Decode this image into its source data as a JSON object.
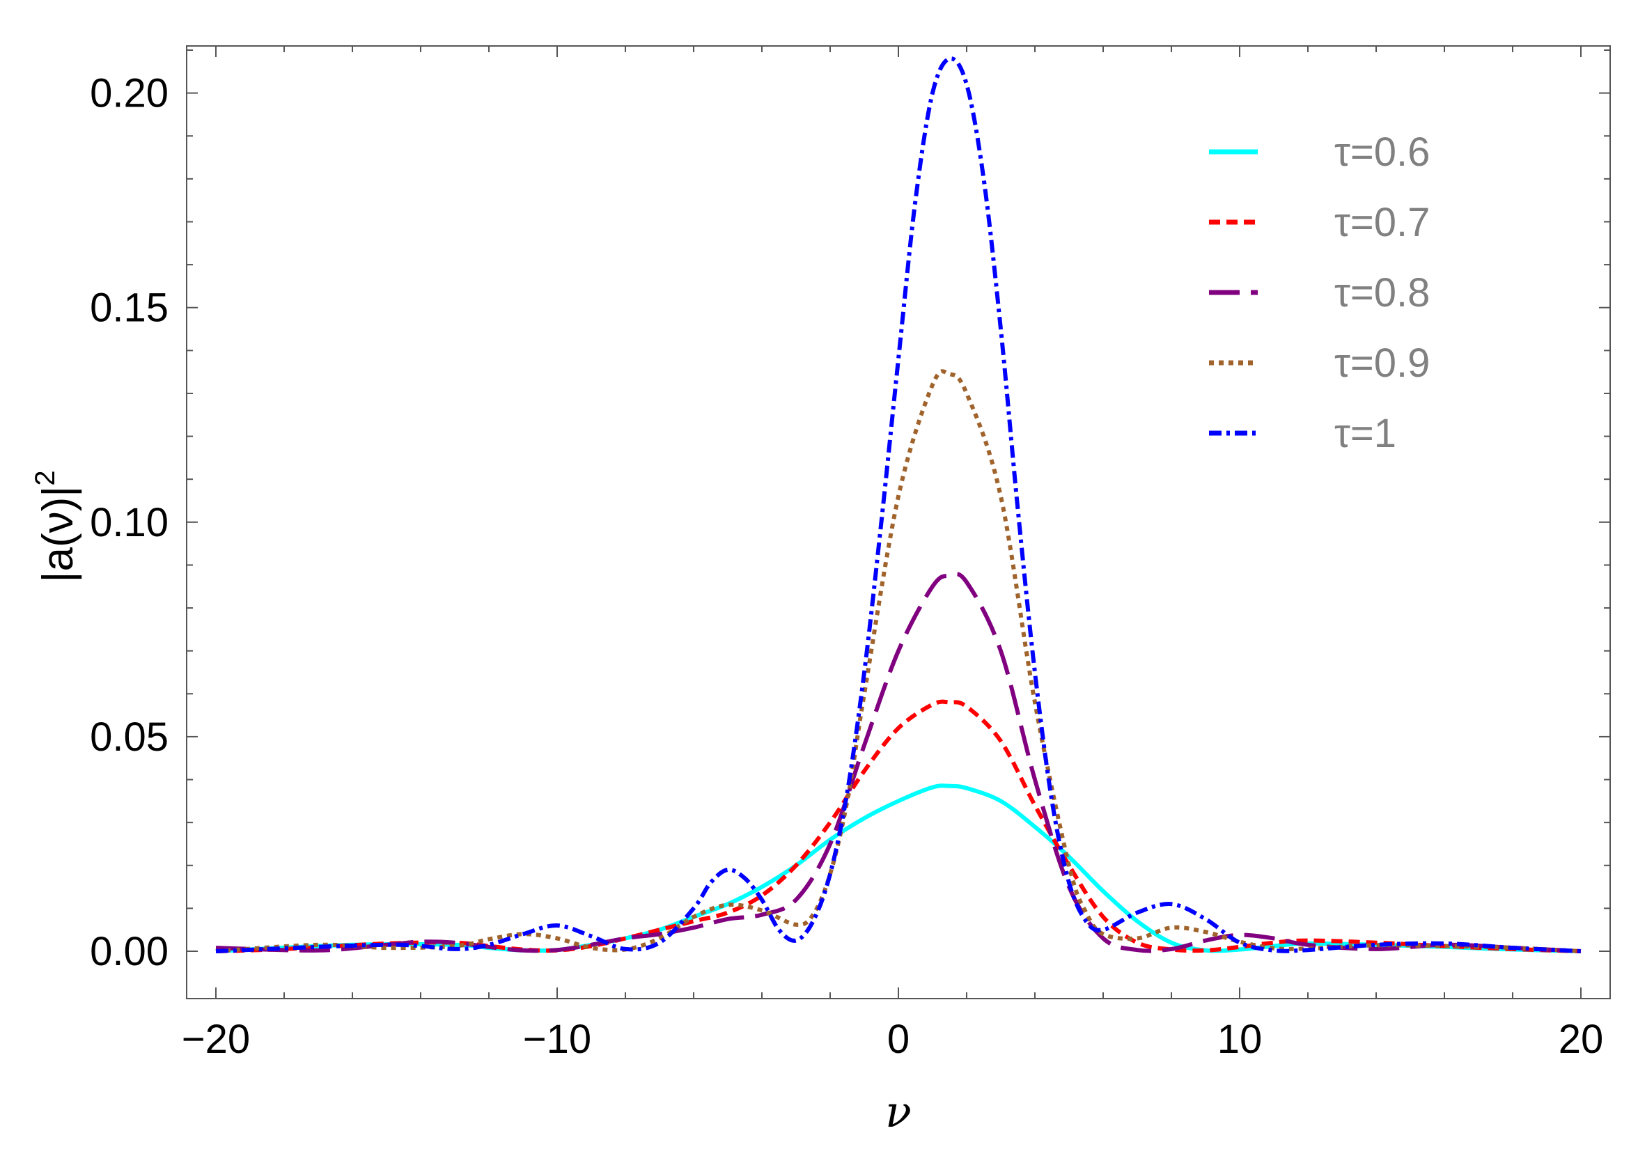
{
  "chart_data": {
    "type": "line",
    "title": "",
    "xlabel": "ν",
    "ylabel": "|a(ν)|²",
    "ylabel_parts": {
      "base": "|a(ν)|",
      "sup": "2"
    },
    "xlim": [
      -20,
      20
    ],
    "ylim": [
      0.0,
      0.21
    ],
    "xticks": [
      -20,
      -10,
      0,
      10,
      20
    ],
    "xtick_labels": [
      "−20",
      "−10",
      "0",
      "10",
      "20"
    ],
    "yticks": [
      0.0,
      0.05,
      0.1,
      0.15,
      0.2
    ],
    "ytick_labels": [
      "0.00",
      "0.05",
      "0.10",
      "0.15",
      "0.20"
    ],
    "grid": false,
    "legend_position": "top-right",
    "series": [
      {
        "name": "τ=0.6",
        "color": "#00ffff",
        "dash": "solid",
        "x": [
          -20,
          -16,
          -13,
          -12,
          -11,
          -10,
          -9,
          -8,
          -7,
          -6,
          -5,
          -4,
          -3,
          -2,
          -1,
          0,
          1,
          1.5,
          2,
          3,
          4,
          5,
          6,
          7,
          8,
          9,
          10,
          11,
          12,
          14,
          16,
          18,
          20
        ],
        "y": [
          0.0,
          0.0015,
          0.0015,
          0.0008,
          0.0002,
          0.0003,
          0.0015,
          0.003,
          0.005,
          0.008,
          0.011,
          0.015,
          0.02,
          0.026,
          0.031,
          0.035,
          0.0382,
          0.0385,
          0.038,
          0.035,
          0.029,
          0.022,
          0.014,
          0.007,
          0.002,
          0.0002,
          0.0004,
          0.0012,
          0.0018,
          0.0015,
          0.001,
          0.0004,
          0.0
        ]
      },
      {
        "name": "τ=0.7",
        "color": "#ff0000",
        "dash": "short",
        "x": [
          -20,
          -18,
          -15,
          -13,
          -12,
          -11,
          -10,
          -9,
          -8,
          -7,
          -6,
          -5,
          -4,
          -3,
          -2,
          -1,
          0,
          1,
          1.5,
          2,
          3,
          4,
          5,
          6,
          7,
          8,
          9,
          10,
          11,
          12,
          14,
          16,
          18,
          20
        ],
        "y": [
          0.0,
          0.0005,
          0.0018,
          0.002,
          0.0012,
          0.0004,
          0.0002,
          0.0012,
          0.003,
          0.005,
          0.007,
          0.009,
          0.013,
          0.02,
          0.03,
          0.042,
          0.052,
          0.0575,
          0.058,
          0.057,
          0.049,
          0.034,
          0.02,
          0.008,
          0.002,
          0.0004,
          0.0002,
          0.001,
          0.002,
          0.0025,
          0.002,
          0.0012,
          0.0005,
          0.0
        ]
      },
      {
        "name": "τ=0.8",
        "color": "#800080",
        "dash": "long",
        "x": [
          -20,
          -17,
          -15,
          -14,
          -13,
          -12,
          -11,
          -10,
          -9,
          -8,
          -7,
          -6,
          -5,
          -4,
          -3,
          -2,
          -1,
          0,
          1,
          1.5,
          2,
          3,
          4,
          5,
          6,
          7,
          8,
          9,
          10,
          11,
          12,
          14,
          16,
          18,
          20
        ],
        "y": [
          0.0008,
          0.0002,
          0.0015,
          0.0022,
          0.002,
          0.001,
          0.0002,
          0.0003,
          0.0015,
          0.003,
          0.004,
          0.0055,
          0.0075,
          0.0085,
          0.012,
          0.025,
          0.048,
          0.07,
          0.085,
          0.0875,
          0.086,
          0.07,
          0.04,
          0.015,
          0.003,
          0.0003,
          0.0005,
          0.0025,
          0.0038,
          0.003,
          0.0015,
          0.0005,
          0.0015,
          0.0008,
          0.0
        ]
      },
      {
        "name": "τ=0.9",
        "color": "#a0632c",
        "dash": "dot",
        "x": [
          -20,
          -17,
          -15,
          -13,
          -12,
          -11,
          -10,
          -9,
          -8,
          -7,
          -6,
          -5,
          -4,
          -3,
          -2.5,
          -2,
          -1.5,
          -1,
          0,
          1,
          1.5,
          2,
          3,
          4,
          5,
          5.5,
          6,
          7,
          8,
          9,
          10,
          11,
          12,
          14,
          16,
          18,
          20
        ],
        "y": [
          0.0,
          0.0015,
          0.0008,
          0.0012,
          0.0028,
          0.004,
          0.003,
          0.0008,
          0.0004,
          0.003,
          0.008,
          0.0108,
          0.0095,
          0.0062,
          0.0085,
          0.018,
          0.035,
          0.06,
          0.106,
          0.132,
          0.1345,
          0.13,
          0.106,
          0.058,
          0.02,
          0.009,
          0.004,
          0.003,
          0.0055,
          0.0045,
          0.0022,
          0.0007,
          0.0006,
          0.0014,
          0.0012,
          0.0008,
          0.0
        ]
      },
      {
        "name": "τ=1",
        "color": "#0000ff",
        "dash": "dashdot",
        "x": [
          -20,
          -15,
          -13,
          -12,
          -11,
          -10,
          -9,
          -8,
          -7,
          -6,
          -5.5,
          -5,
          -4.5,
          -4,
          -3.5,
          -3,
          -2.5,
          -2,
          -1.5,
          -1,
          -0.5,
          0,
          0.5,
          1,
          1.5,
          2,
          2.5,
          3,
          3.5,
          4,
          4.5,
          5,
          5.5,
          6,
          7,
          8,
          9,
          10,
          11,
          12,
          14,
          16,
          18,
          20
        ],
        "y": [
          0.0,
          0.0015,
          0.0005,
          0.0015,
          0.004,
          0.006,
          0.0035,
          0.0005,
          0.002,
          0.01,
          0.016,
          0.019,
          0.017,
          0.012,
          0.005,
          0.0025,
          0.007,
          0.018,
          0.037,
          0.065,
          0.1,
          0.138,
          0.175,
          0.2,
          0.208,
          0.202,
          0.18,
          0.145,
          0.103,
          0.065,
          0.035,
          0.016,
          0.007,
          0.005,
          0.009,
          0.011,
          0.0075,
          0.002,
          0.0002,
          0.0003,
          0.0015,
          0.0018,
          0.0008,
          0.0
        ]
      }
    ]
  }
}
